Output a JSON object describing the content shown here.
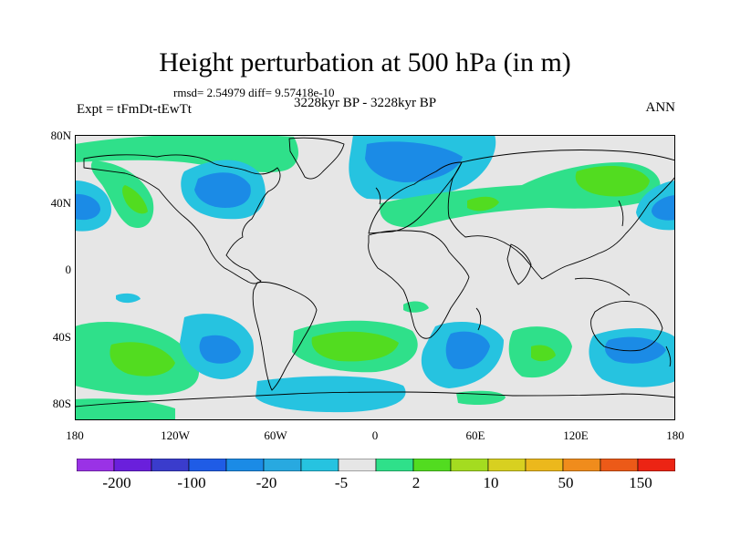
{
  "header": {
    "title": "Height perturbation at 500 hPa (in m)",
    "stats": "rmsd= 2.54979  diff= 9.57418e-10",
    "period": "3228kyr BP - 3228kyr BP",
    "experiment": "Expt = tFmDt-tEwTt",
    "season": "ANN"
  },
  "axes": {
    "lat_ticks": [
      "80N",
      "40N",
      "0",
      "40S",
      "80S"
    ],
    "lon_ticks": [
      "180",
      "120W",
      "60W",
      "0",
      "60E",
      "120E",
      "180"
    ]
  },
  "colorbar": {
    "labels": [
      "-200",
      "-100",
      "-20",
      "-5",
      "2",
      "10",
      "50",
      "150"
    ],
    "colors": [
      "#9a32e6",
      "#6a1fdc",
      "#3a3ccc",
      "#1f5ce6",
      "#1b8be6",
      "#28a9e0",
      "#26c3e0",
      "#e6e6e6",
      "#2fe08a",
      "#52dc20",
      "#a4dc20",
      "#d8d020",
      "#ecb81c",
      "#f08c1c",
      "#ec5a18",
      "#ec2414"
    ]
  },
  "colors": {
    "background": "#e6e6e6",
    "coast": "#000000"
  },
  "fields": {
    "positive_level1": "#2fe08a",
    "positive_level2": "#52dc20",
    "negative_level1": "#26c3e0",
    "negative_level2": "#1b8be6"
  }
}
